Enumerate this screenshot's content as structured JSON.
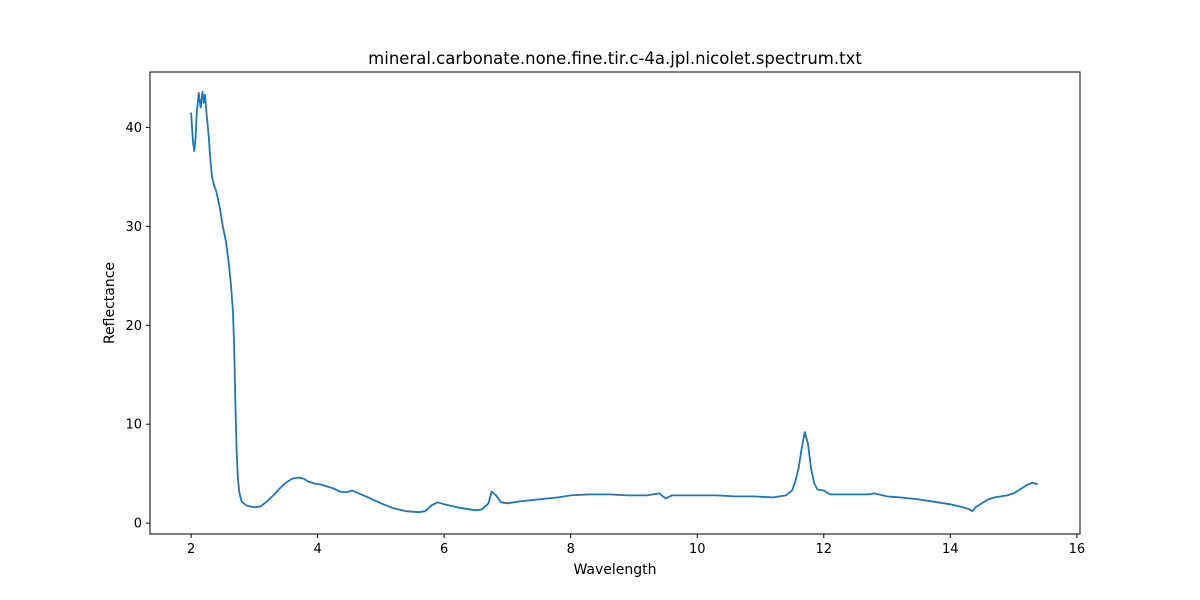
{
  "chart_data": {
    "type": "line",
    "title": "mineral.carbonate.none.fine.tir.c-4a.jpl.nicolet.spectrum.txt",
    "xlabel": "Wavelength",
    "ylabel": "Reflectance",
    "xlim": [
      1.35,
      16.05
    ],
    "ylim": [
      -1.1,
      45.6
    ],
    "xticks": [
      2,
      4,
      6,
      8,
      10,
      12,
      14,
      16
    ],
    "yticks": [
      0,
      10,
      20,
      30,
      40
    ],
    "grid": false,
    "line_color": "#1f77b4",
    "series": [
      {
        "x": [
          2.0,
          2.03,
          2.05,
          2.07,
          2.09,
          2.12,
          2.15,
          2.18,
          2.2,
          2.22,
          2.25,
          2.28,
          2.3,
          2.33,
          2.36,
          2.4,
          2.45,
          2.5,
          2.55,
          2.6,
          2.63,
          2.66,
          2.68,
          2.7,
          2.72,
          2.74,
          2.76,
          2.78,
          2.8,
          2.83,
          2.87,
          2.92,
          3.0,
          3.1,
          3.2,
          3.3,
          3.4,
          3.5,
          3.6,
          3.7,
          3.78,
          3.85,
          3.95,
          4.05,
          4.15,
          4.25,
          4.35,
          4.45,
          4.55,
          4.65,
          4.8,
          5.0,
          5.2,
          5.4,
          5.6,
          5.7,
          5.8,
          5.9,
          6.0,
          6.2,
          6.4,
          6.5,
          6.6,
          6.7,
          6.75,
          6.82,
          6.9,
          7.0,
          7.2,
          7.5,
          7.8,
          8.0,
          8.3,
          8.6,
          8.9,
          9.2,
          9.4,
          9.5,
          9.6,
          9.8,
          10.0,
          10.3,
          10.6,
          10.9,
          11.2,
          11.4,
          11.5,
          11.55,
          11.6,
          11.65,
          11.7,
          11.75,
          11.8,
          11.85,
          11.9,
          12.0,
          12.1,
          12.3,
          12.5,
          12.7,
          12.8,
          13.0,
          13.2,
          13.5,
          13.8,
          14.0,
          14.2,
          14.3,
          14.35,
          14.4,
          14.5,
          14.6,
          14.7,
          14.8,
          14.9,
          15.0,
          15.1,
          15.2,
          15.3,
          15.38
        ],
        "y": [
          41.5,
          38.5,
          37.6,
          39.0,
          41.5,
          43.5,
          42.0,
          43.6,
          42.5,
          43.3,
          41.0,
          39.0,
          37.0,
          35.0,
          34.2,
          33.5,
          32.0,
          30.0,
          28.5,
          26.0,
          24.0,
          21.5,
          18.0,
          12.0,
          7.0,
          4.5,
          3.2,
          2.6,
          2.2,
          2.0,
          1.8,
          1.7,
          1.6,
          1.7,
          2.2,
          2.8,
          3.5,
          4.1,
          4.5,
          4.6,
          4.5,
          4.2,
          4.0,
          3.9,
          3.7,
          3.5,
          3.2,
          3.1,
          3.3,
          3.0,
          2.6,
          2.0,
          1.5,
          1.2,
          1.1,
          1.2,
          1.8,
          2.1,
          1.9,
          1.6,
          1.4,
          1.3,
          1.4,
          2.0,
          3.2,
          2.8,
          2.1,
          2.0,
          2.2,
          2.4,
          2.6,
          2.8,
          2.9,
          2.9,
          2.8,
          2.8,
          3.0,
          2.5,
          2.8,
          2.8,
          2.8,
          2.8,
          2.7,
          2.7,
          2.6,
          2.8,
          3.3,
          4.2,
          5.5,
          7.5,
          9.2,
          8.0,
          5.5,
          4.0,
          3.4,
          3.3,
          2.9,
          2.9,
          2.9,
          2.9,
          3.0,
          2.7,
          2.6,
          2.4,
          2.1,
          1.9,
          1.6,
          1.4,
          1.2,
          1.6,
          2.0,
          2.4,
          2.6,
          2.7,
          2.8,
          3.0,
          3.4,
          3.8,
          4.1,
          3.9
        ]
      }
    ]
  }
}
